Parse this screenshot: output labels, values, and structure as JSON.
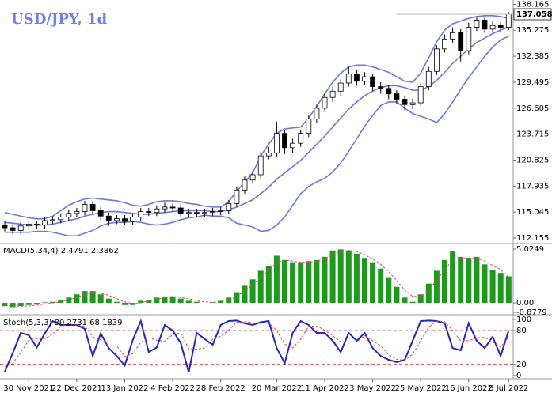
{
  "chart_data": [
    {
      "type": "candlestick",
      "title": "USD/JPY, 1d",
      "open": [
        113.6,
        113.3,
        113.0,
        113.5,
        113.7,
        113.6,
        114.1,
        114.2,
        114.5,
        114.9,
        115.1,
        115.9,
        115.2,
        114.6,
        114.1,
        114.3,
        114.0,
        114.5,
        115.1,
        115.0,
        115.4,
        115.6,
        115.5,
        114.9,
        115.0,
        114.9,
        115.0,
        115.1,
        115.2,
        116.0,
        117.5,
        118.6,
        119.2,
        121.3,
        121.6,
        123.8,
        122.2,
        122.7,
        123.8,
        125.4,
        126.6,
        127.8,
        128.5,
        129.4,
        130.4,
        129.6,
        130.1,
        129.0,
        128.8,
        128.2,
        127.6,
        127.0,
        127.2,
        129.0,
        130.7,
        133.2,
        134.3,
        135.0,
        133.0,
        135.6,
        136.4,
        135.4,
        135.8,
        135.6
      ],
      "high": [
        114.0,
        113.7,
        113.9,
        114.1,
        114.1,
        114.5,
        114.6,
        114.9,
        115.3,
        115.5,
        116.3,
        116.3,
        115.6,
        115.0,
        114.7,
        114.7,
        114.9,
        115.5,
        115.5,
        115.8,
        116.1,
        116.0,
        115.9,
        115.4,
        115.4,
        115.4,
        115.5,
        115.6,
        116.4,
        117.9,
        119.0,
        119.6,
        121.7,
        122.3,
        125.1,
        124.2,
        123.2,
        124.2,
        125.8,
        127.0,
        128.3,
        129.0,
        129.8,
        131.2,
        130.9,
        130.6,
        130.4,
        129.5,
        129.2,
        128.6,
        128.0,
        127.7,
        129.4,
        131.2,
        133.6,
        134.8,
        135.6,
        135.4,
        136.1,
        136.8,
        136.8,
        136.3,
        136.2,
        137.3
      ],
      "low": [
        112.9,
        112.6,
        112.6,
        113.1,
        113.2,
        113.2,
        113.7,
        113.8,
        114.1,
        114.5,
        114.7,
        114.8,
        114.2,
        113.5,
        113.7,
        113.6,
        113.6,
        114.1,
        114.6,
        114.6,
        115.0,
        115.1,
        114.5,
        114.5,
        114.5,
        114.5,
        114.6,
        114.7,
        114.8,
        115.6,
        117.1,
        118.2,
        118.8,
        120.9,
        121.2,
        121.5,
        121.6,
        122.3,
        123.4,
        125.0,
        126.2,
        127.3,
        128.0,
        129.0,
        129.1,
        129.2,
        128.5,
        128.2,
        127.6,
        127.1,
        126.4,
        126.5,
        126.9,
        128.6,
        130.3,
        132.8,
        133.9,
        131.8,
        132.6,
        135.2,
        135.0,
        135.0,
        135.1,
        135.3
      ],
      "close": [
        113.3,
        113.0,
        113.5,
        113.7,
        113.6,
        114.1,
        114.2,
        114.5,
        114.9,
        115.1,
        115.9,
        115.2,
        114.6,
        114.1,
        114.3,
        114.0,
        114.5,
        115.1,
        115.0,
        115.4,
        115.6,
        115.5,
        114.9,
        115.0,
        114.9,
        115.0,
        115.1,
        115.2,
        116.0,
        117.5,
        118.6,
        119.2,
        121.3,
        121.6,
        123.8,
        122.2,
        122.7,
        123.8,
        125.4,
        126.6,
        127.8,
        128.5,
        129.4,
        130.4,
        129.6,
        130.1,
        129.0,
        128.8,
        128.2,
        127.6,
        127.0,
        127.2,
        129.0,
        130.7,
        133.2,
        134.3,
        135.0,
        133.0,
        135.6,
        136.4,
        135.4,
        135.8,
        135.6,
        137.058
      ],
      "upper": [
        115.0,
        114.8,
        114.6,
        114.4,
        114.3,
        114.3,
        114.6,
        115.2,
        115.8,
        116.2,
        116.5,
        116.6,
        116.5,
        116.4,
        116.3,
        116.1,
        115.8,
        115.7,
        115.9,
        116.2,
        116.3,
        116.3,
        116.2,
        116.0,
        115.9,
        115.7,
        115.6,
        115.6,
        116.2,
        117.4,
        118.4,
        119.4,
        121.3,
        122.6,
        123.8,
        124.3,
        124.4,
        124.5,
        125.5,
        126.8,
        128.2,
        129.5,
        130.5,
        131.2,
        131.4,
        131.4,
        131.2,
        130.9,
        130.6,
        130.1,
        129.6,
        129.5,
        130.5,
        132.2,
        134.0,
        135.3,
        136.0,
        136.3,
        136.6,
        136.8,
        136.9,
        136.9,
        136.8,
        136.6
      ],
      "middle": [
        113.9,
        113.8,
        113.7,
        113.6,
        113.6,
        113.6,
        113.7,
        113.9,
        114.1,
        114.3,
        114.6,
        114.8,
        115.0,
        115.1,
        115.1,
        115.0,
        114.9,
        114.8,
        114.8,
        114.9,
        115.0,
        115.1,
        115.2,
        115.2,
        115.2,
        115.2,
        115.1,
        115.1,
        115.3,
        115.6,
        116.0,
        116.4,
        117.1,
        117.8,
        118.7,
        119.4,
        120.1,
        120.8,
        121.7,
        122.6,
        123.5,
        124.5,
        125.5,
        126.5,
        127.3,
        128.0,
        128.5,
        128.9,
        129.1,
        129.1,
        128.9,
        128.6,
        128.6,
        129.0,
        129.7,
        130.6,
        131.6,
        132.4,
        133.2,
        133.9,
        134.4,
        134.9,
        135.3,
        135.6
      ],
      "lower": [
        112.8,
        112.8,
        112.8,
        112.8,
        112.9,
        112.9,
        112.8,
        112.6,
        112.4,
        112.4,
        112.7,
        113.0,
        113.5,
        113.8,
        113.9,
        113.9,
        114.0,
        113.9,
        113.7,
        113.6,
        113.7,
        113.9,
        114.2,
        114.4,
        114.5,
        114.7,
        114.6,
        114.6,
        114.4,
        113.8,
        113.6,
        113.4,
        112.9,
        113.0,
        113.6,
        114.5,
        115.8,
        117.1,
        117.9,
        118.4,
        118.8,
        119.5,
        120.5,
        121.8,
        123.2,
        124.6,
        125.8,
        126.9,
        127.3,
        127.3,
        126.6,
        126.0,
        125.7,
        125.4,
        125.0,
        126.0,
        127.3,
        128.7,
        130.0,
        131.2,
        132.4,
        133.4,
        134.2,
        134.6
      ],
      "band_color": "#6a78e6",
      "last_price": 137.058,
      "ylim": [
        111.63,
        138.64
      ],
      "yticks": [
        138.165,
        135.275,
        132.385,
        129.495,
        126.605,
        123.715,
        120.825,
        117.935,
        115.045,
        112.155
      ]
    },
    {
      "type": "macd",
      "title": "MACD(5,34,4) 2.4791 2.3862",
      "series": [
        {
          "kind": "bar",
          "color": "#1f9a1f",
          "values": [
            -0.3,
            -0.4,
            -0.3,
            -0.2,
            -0.1,
            0.05,
            0.1,
            0.3,
            0.5,
            0.8,
            1.1,
            1.1,
            0.8,
            0.4,
            0.1,
            -0.2,
            -0.2,
            0.2,
            0.3,
            0.5,
            0.6,
            0.6,
            0.4,
            0.2,
            0.1,
            0.0,
            0.05,
            0.2,
            0.5,
            1.0,
            1.6,
            2.2,
            3.0,
            3.4,
            4.4,
            4.0,
            3.8,
            3.8,
            3.9,
            4.0,
            4.3,
            4.9,
            5.0,
            4.9,
            4.6,
            4.2,
            3.8,
            3.2,
            2.4,
            1.5,
            0.5,
            0.1,
            0.8,
            1.8,
            3.0,
            4.0,
            4.8,
            4.3,
            4.2,
            4.3,
            3.6,
            3.1,
            2.8,
            2.4791
          ]
        },
        {
          "kind": "dashed",
          "color": "#e0407a",
          "values": [
            -0.2,
            -0.3,
            -0.3,
            -0.3,
            -0.2,
            -0.1,
            0.0,
            0.1,
            0.3,
            0.5,
            0.8,
            1.0,
            0.9,
            0.7,
            0.4,
            0.1,
            -0.1,
            0.0,
            0.2,
            0.3,
            0.5,
            0.6,
            0.5,
            0.4,
            0.2,
            0.1,
            0.05,
            0.1,
            0.3,
            0.6,
            1.1,
            1.7,
            2.4,
            3.0,
            3.8,
            4.0,
            3.9,
            3.8,
            3.8,
            3.9,
            4.1,
            4.5,
            4.8,
            4.9,
            4.8,
            4.5,
            4.1,
            3.6,
            2.9,
            2.1,
            1.2,
            0.6,
            0.6,
            1.2,
            2.1,
            3.1,
            4.0,
            4.2,
            4.2,
            4.2,
            3.9,
            3.5,
            3.1,
            2.3862
          ]
        }
      ],
      "ylim": [
        -1.03,
        5.47
      ],
      "yticks": [
        5.0249,
        {
          "value": 0,
          "label": "0.00"
        },
        {
          "value": -0.8779,
          "label": "-0.8779"
        }
      ]
    },
    {
      "type": "stochastic",
      "title": "Stoch(5,3,3) 80.2731 68.1839",
      "categories": [
        null,
        null,
        null,
        "30 Nov 2021",
        null,
        null,
        null,
        null,
        null,
        "22 Dec 2021",
        null,
        null,
        null,
        null,
        null,
        "13 Jan 2022",
        null,
        null,
        null,
        null,
        null,
        "4 Feb 2022",
        null,
        null,
        null,
        null,
        null,
        "28 Feb 2022",
        null,
        null,
        null,
        null,
        null,
        null,
        "20 Mar 2022",
        null,
        null,
        null,
        null,
        null,
        "11 Apr 2022",
        null,
        null,
        null,
        null,
        null,
        "3 May 2022",
        null,
        null,
        null,
        null,
        null,
        "25 May 2022",
        null,
        null,
        null,
        null,
        null,
        "16 Jun 2022",
        null,
        null,
        null,
        null,
        "8 Jul 2022"
      ],
      "series": [
        {
          "kind": "solid",
          "color": "#2424c0",
          "values": [
            7,
            40,
            76,
            72,
            50,
            75,
            97,
            90,
            90,
            90,
            83,
            35,
            75,
            49,
            35,
            18,
            63,
            97,
            42,
            50,
            90,
            80,
            58,
            6,
            76,
            65,
            55,
            90,
            97,
            98,
            93,
            90,
            95,
            97,
            49,
            22,
            76,
            97,
            90,
            76,
            76,
            62,
            42,
            76,
            62,
            76,
            49,
            35,
            28,
            24,
            28,
            62,
            97,
            98,
            97,
            93,
            49,
            45,
            93,
            62,
            49,
            69,
            35,
            80.2731
          ]
        },
        {
          "kind": "dashed",
          "color": "#d8406a",
          "values": [
            15,
            22,
            41,
            63,
            66,
            66,
            74,
            87,
            92,
            90,
            88,
            69,
            64,
            53,
            53,
            34,
            39,
            59,
            67,
            63,
            61,
            73,
            76,
            48,
            47,
            49,
            65,
            70,
            81,
            95,
            96,
            94,
            93,
            94,
            80,
            56,
            49,
            65,
            88,
            88,
            81,
            71,
            60,
            60,
            60,
            71,
            62,
            53,
            37,
            29,
            27,
            38,
            62,
            86,
            97,
            96,
            80,
            62,
            62,
            67,
            68,
            60,
            51,
            68.1839
          ]
        }
      ],
      "levels": [
        80,
        20
      ],
      "level_color": "#d03030",
      "ylim": [
        -4.2,
        106.9
      ],
      "yticks": [
        100,
        80,
        20,
        0
      ]
    }
  ]
}
